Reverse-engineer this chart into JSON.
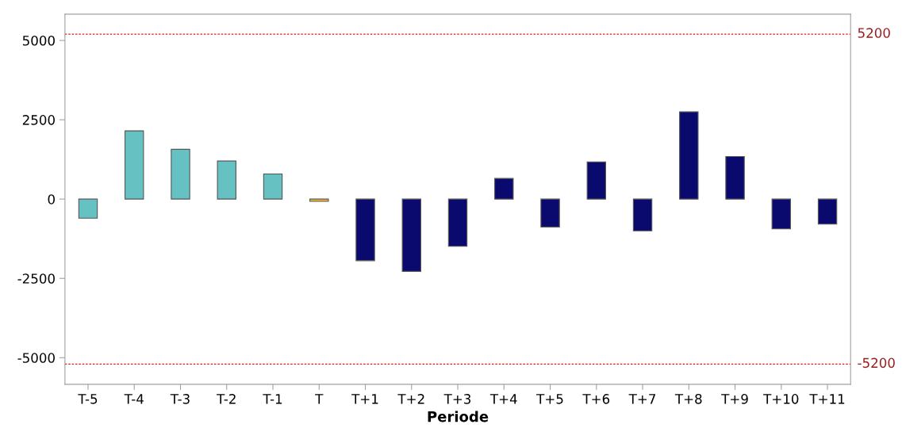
{
  "chart_data": {
    "type": "bar",
    "xlabel": "Periode",
    "categories": [
      "T-5",
      "T-4",
      "T-3",
      "T-2",
      "T-1",
      "T",
      "T+1",
      "T+2",
      "T+3",
      "T+4",
      "T+5",
      "T+6",
      "T+7",
      "T+8",
      "T+9",
      "T+10",
      "T+11"
    ],
    "values": [
      -600,
      2150,
      1570,
      1200,
      790,
      -70,
      -1940,
      -2280,
      -1490,
      650,
      -880,
      1170,
      -1000,
      2750,
      1340,
      -940,
      -790
    ],
    "colors": [
      "#66c2c2",
      "#66c2c2",
      "#66c2c2",
      "#66c2c2",
      "#66c2c2",
      "#f5b82e",
      "#0a0a6e",
      "#0a0a6e",
      "#0a0a6e",
      "#0a0a6e",
      "#0a0a6e",
      "#0a0a6e",
      "#0a0a6e",
      "#0a0a6e",
      "#0a0a6e",
      "#0a0a6e",
      "#0a0a6e"
    ],
    "ylim": [
      -5840,
      5830
    ],
    "yticks": [
      -5000,
      -2500,
      0,
      2500,
      5000
    ],
    "ref_lines": [
      {
        "axis": "y",
        "value": 5200,
        "label": "5200",
        "color": "#d42020",
        "line_style": "dotted"
      },
      {
        "axis": "y",
        "value": -5200,
        "label": "-5200",
        "color": "#d42020",
        "line_style": "dotted"
      }
    ],
    "grid": false,
    "legend": false
  }
}
